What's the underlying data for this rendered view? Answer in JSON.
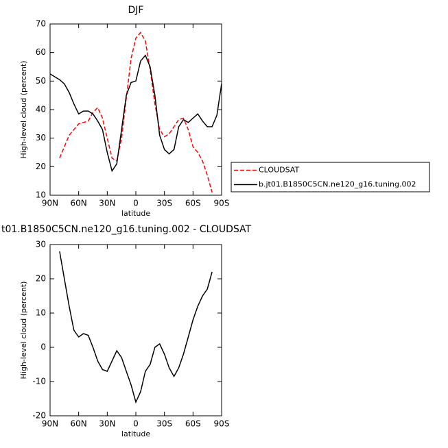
{
  "chart_data": [
    {
      "type": "line",
      "title": "DJF",
      "xlabel": "latitude",
      "ylabel": "High-level cloud (percent)",
      "x": [
        90,
        85,
        80,
        75,
        70,
        65,
        60,
        55,
        50,
        45,
        40,
        35,
        30,
        25,
        20,
        15,
        10,
        5,
        0,
        -5,
        -10,
        -15,
        -20,
        -25,
        -30,
        -35,
        -40,
        -45,
        -50,
        -55,
        -60,
        -65,
        -70,
        -75,
        -80,
        -85,
        -90
      ],
      "xlim": [
        90,
        -90
      ],
      "xticks": [
        {
          "value": 90,
          "label": "90N"
        },
        {
          "value": 60,
          "label": "60N"
        },
        {
          "value": 30,
          "label": "30N"
        },
        0,
        {
          "value": -30,
          "label": "30S"
        },
        {
          "value": -60,
          "label": "60S"
        },
        {
          "value": -90,
          "label": "90S"
        }
      ],
      "ylim": [
        10,
        70
      ],
      "yticks": [
        10,
        20,
        30,
        40,
        50,
        60,
        70
      ],
      "legend": "right",
      "series": [
        {
          "name": "CLOUDSAT",
          "color": "#ff0000",
          "dash": true,
          "values": [
            null,
            null,
            23,
            27,
            31,
            33,
            35,
            35.5,
            36,
            39,
            40.7,
            37,
            30,
            23,
            22,
            30,
            44,
            58,
            65,
            67,
            64,
            54,
            42,
            33,
            30.5,
            31.5,
            34,
            36.5,
            37,
            33,
            27,
            25,
            22,
            17,
            11,
            null,
            null
          ]
        },
        {
          "name": "b.jt01.B1850C5CN.ne120_g16.tuning.002",
          "color": "#000000",
          "dash": false,
          "values": [
            52.5,
            51.5,
            50.5,
            49,
            46,
            42,
            38.5,
            39.5,
            39.5,
            38.5,
            36,
            33,
            25,
            18.5,
            21,
            33,
            45,
            49.5,
            50,
            57,
            59,
            55,
            45,
            31,
            26,
            24.5,
            26,
            34,
            36.5,
            35.5,
            37,
            38.5,
            36,
            34,
            34,
            38,
            49
          ]
        }
      ]
    },
    {
      "type": "line",
      "title": "t01.B1850C5CN.ne120_g16.tuning.002 - CLOUDSAT",
      "xlabel": "latitude",
      "ylabel": "High-level cloud (percent)",
      "x": [
        90,
        85,
        80,
        75,
        70,
        65,
        60,
        55,
        50,
        45,
        40,
        35,
        30,
        25,
        20,
        15,
        10,
        5,
        0,
        -5,
        -10,
        -15,
        -20,
        -25,
        -30,
        -35,
        -40,
        -45,
        -50,
        -55,
        -60,
        -65,
        -70,
        -75,
        -80,
        -85,
        -90
      ],
      "xlim": [
        90,
        -90
      ],
      "xticks": [
        {
          "value": 90,
          "label": "90N"
        },
        {
          "value": 60,
          "label": "60N"
        },
        {
          "value": 30,
          "label": "30N"
        },
        0,
        {
          "value": -30,
          "label": "30S"
        },
        {
          "value": -60,
          "label": "60S"
        },
        {
          "value": -90,
          "label": "90S"
        }
      ],
      "ylim": [
        -20,
        30
      ],
      "yticks": [
        -20,
        -10,
        0,
        10,
        20,
        30
      ],
      "series": [
        {
          "color": "#000000",
          "dash": false,
          "values": [
            null,
            null,
            28,
            20,
            12,
            5,
            3,
            4,
            3.5,
            0,
            -4,
            -6.5,
            -7,
            -4,
            -1,
            -3,
            -7,
            -11,
            -16,
            -13,
            -7,
            -5,
            0,
            1,
            -2,
            -6,
            -8.5,
            -6,
            -2,
            3,
            8,
            12,
            15,
            17,
            22,
            null,
            null
          ]
        }
      ]
    }
  ]
}
